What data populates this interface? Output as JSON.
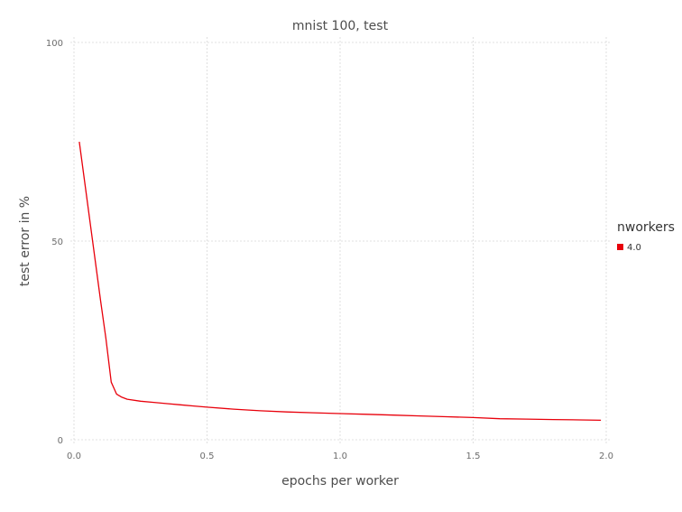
{
  "chart_data": {
    "type": "line",
    "title": "mnist 100, test",
    "xlabel": "epochs per worker",
    "ylabel": "test error in %",
    "xlim": [
      0.0,
      2.0
    ],
    "ylim": [
      0,
      100
    ],
    "x_ticks": [
      "0.0",
      "0.5",
      "1.0",
      "1.5",
      "2.0"
    ],
    "y_ticks": [
      "0",
      "50",
      "100"
    ],
    "grid": true,
    "legend": {
      "title": "nworkers",
      "position": "right"
    },
    "series": [
      {
        "name": "4.0",
        "color": "#e8000b",
        "x": [
          0.02,
          0.04,
          0.06,
          0.08,
          0.1,
          0.12,
          0.14,
          0.16,
          0.18,
          0.2,
          0.25,
          0.3,
          0.35,
          0.4,
          0.45,
          0.5,
          0.6,
          0.7,
          0.8,
          0.9,
          1.0,
          1.1,
          1.2,
          1.3,
          1.4,
          1.5,
          1.6,
          1.7,
          1.8,
          1.9,
          1.98
        ],
        "y": [
          75.0,
          65.0,
          55.0,
          45.0,
          35.0,
          25.5,
          14.5,
          11.5,
          10.7,
          10.2,
          9.7,
          9.4,
          9.1,
          8.8,
          8.5,
          8.2,
          7.7,
          7.3,
          7.0,
          6.8,
          6.6,
          6.4,
          6.2,
          6.0,
          5.8,
          5.6,
          5.3,
          5.2,
          5.1,
          5.0,
          4.9
        ]
      }
    ]
  }
}
